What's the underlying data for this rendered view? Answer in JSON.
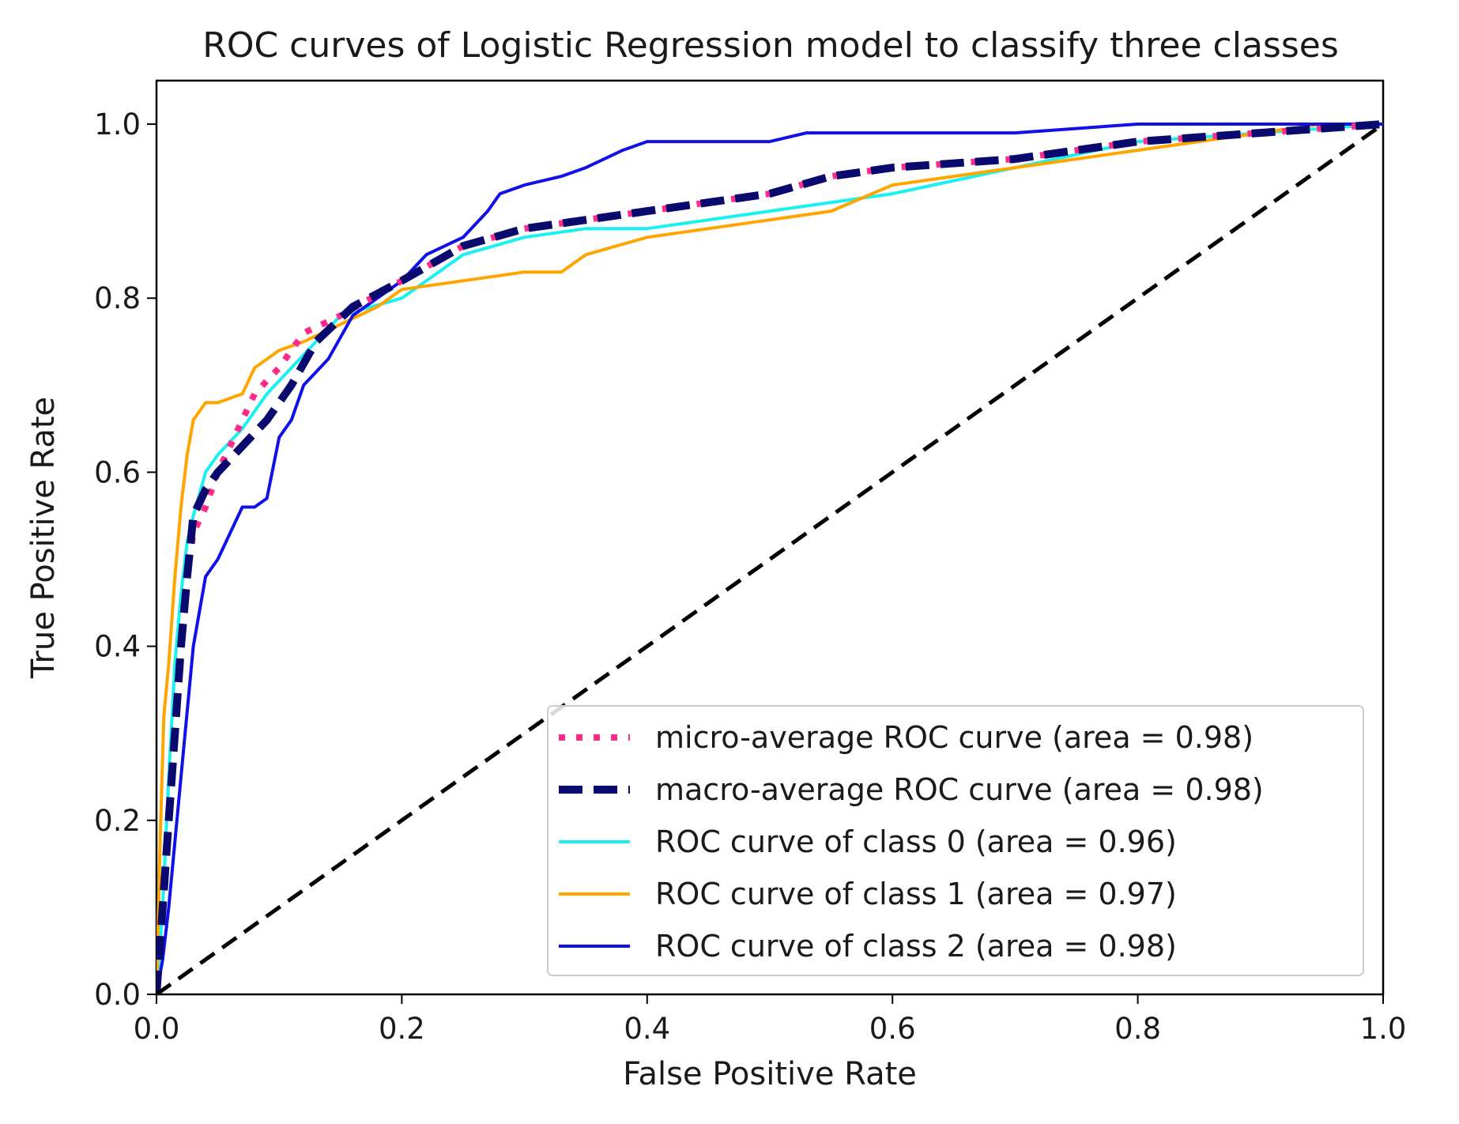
{
  "chart_data": {
    "type": "line",
    "title": "ROC curves of Logistic Regression model to classify three classes",
    "xlabel": "False Positive Rate",
    "ylabel": "True Positive Rate",
    "xlim": [
      0.0,
      1.0
    ],
    "ylim": [
      0.0,
      1.05
    ],
    "xticks": [
      0.0,
      0.2,
      0.4,
      0.6,
      0.8,
      1.0
    ],
    "yticks": [
      0.0,
      0.2,
      0.4,
      0.6,
      0.8,
      1.0
    ],
    "xtick_labels": [
      "0.0",
      "0.2",
      "0.4",
      "0.6",
      "0.8",
      "1.0"
    ],
    "ytick_labels": [
      "0.0",
      "0.2",
      "0.4",
      "0.6",
      "0.8",
      "1.0"
    ],
    "grid": false,
    "legend_position": "lower-right",
    "chance_line": {
      "name": "chance",
      "color": "#000000",
      "style": "dashed",
      "x": [
        0.0,
        1.0
      ],
      "y": [
        0.0,
        1.0
      ]
    },
    "series": [
      {
        "name": "micro-average ROC curve (area = 0.98)",
        "color": "#ff2a8a",
        "style": "dotted",
        "x": [
          0.0,
          0.005,
          0.01,
          0.015,
          0.02,
          0.025,
          0.03,
          0.04,
          0.05,
          0.06,
          0.07,
          0.08,
          0.1,
          0.12,
          0.15,
          0.2,
          0.25,
          0.3,
          0.35,
          0.4,
          0.45,
          0.5,
          0.55,
          0.6,
          0.7,
          0.8,
          0.9,
          1.0
        ],
        "y": [
          0.0,
          0.1,
          0.2,
          0.3,
          0.4,
          0.48,
          0.53,
          0.56,
          0.6,
          0.63,
          0.66,
          0.69,
          0.72,
          0.76,
          0.78,
          0.82,
          0.86,
          0.88,
          0.89,
          0.9,
          0.91,
          0.92,
          0.94,
          0.95,
          0.96,
          0.98,
          0.99,
          1.0
        ]
      },
      {
        "name": "macro-average ROC curve (area = 0.98)",
        "color": "#0a0a6e",
        "style": "dashed-thick",
        "x": [
          0.0,
          0.005,
          0.01,
          0.015,
          0.02,
          0.025,
          0.03,
          0.04,
          0.05,
          0.07,
          0.09,
          0.11,
          0.13,
          0.16,
          0.2,
          0.25,
          0.3,
          0.35,
          0.4,
          0.45,
          0.5,
          0.55,
          0.6,
          0.7,
          0.8,
          0.9,
          1.0
        ],
        "y": [
          0.0,
          0.1,
          0.2,
          0.3,
          0.4,
          0.48,
          0.55,
          0.58,
          0.6,
          0.63,
          0.66,
          0.7,
          0.75,
          0.79,
          0.82,
          0.86,
          0.88,
          0.89,
          0.9,
          0.91,
          0.92,
          0.94,
          0.95,
          0.96,
          0.98,
          0.99,
          1.0
        ]
      },
      {
        "name": "ROC curve of class 0 (area = 0.96)",
        "color": "#19f0f0",
        "style": "solid",
        "x": [
          0.0,
          0.005,
          0.01,
          0.015,
          0.02,
          0.025,
          0.03,
          0.04,
          0.05,
          0.07,
          0.09,
          0.11,
          0.13,
          0.15,
          0.2,
          0.25,
          0.3,
          0.35,
          0.4,
          0.45,
          0.5,
          0.55,
          0.6,
          0.7,
          0.8,
          0.9,
          1.0
        ],
        "y": [
          0.0,
          0.1,
          0.25,
          0.38,
          0.46,
          0.52,
          0.55,
          0.6,
          0.62,
          0.65,
          0.69,
          0.72,
          0.75,
          0.78,
          0.8,
          0.85,
          0.87,
          0.88,
          0.88,
          0.89,
          0.9,
          0.91,
          0.92,
          0.95,
          0.98,
          0.99,
          1.0
        ]
      },
      {
        "name": "ROC curve of class 1 (area = 0.97)",
        "color": "#ffa500",
        "style": "solid",
        "x": [
          0.0,
          0.003,
          0.006,
          0.01,
          0.015,
          0.02,
          0.025,
          0.03,
          0.04,
          0.05,
          0.07,
          0.08,
          0.1,
          0.12,
          0.15,
          0.18,
          0.2,
          0.25,
          0.3,
          0.33,
          0.35,
          0.4,
          0.45,
          0.5,
          0.55,
          0.6,
          0.65,
          0.7,
          0.75,
          0.8,
          0.85,
          0.9,
          0.95,
          1.0
        ],
        "y": [
          0.0,
          0.18,
          0.32,
          0.38,
          0.48,
          0.56,
          0.62,
          0.66,
          0.68,
          0.68,
          0.69,
          0.72,
          0.74,
          0.75,
          0.77,
          0.79,
          0.81,
          0.82,
          0.83,
          0.83,
          0.85,
          0.87,
          0.88,
          0.89,
          0.9,
          0.93,
          0.94,
          0.95,
          0.96,
          0.97,
          0.98,
          0.99,
          1.0,
          1.0
        ]
      },
      {
        "name": "ROC curve of class 2 (area = 0.98)",
        "color": "#1010e8",
        "style": "solid",
        "x": [
          0.0,
          0.005,
          0.01,
          0.02,
          0.03,
          0.04,
          0.05,
          0.06,
          0.07,
          0.08,
          0.09,
          0.1,
          0.11,
          0.12,
          0.14,
          0.16,
          0.18,
          0.2,
          0.22,
          0.25,
          0.27,
          0.28,
          0.3,
          0.33,
          0.35,
          0.38,
          0.4,
          0.45,
          0.5,
          0.53,
          0.6,
          0.7,
          0.8,
          0.9,
          1.0
        ],
        "y": [
          0.0,
          0.04,
          0.1,
          0.25,
          0.4,
          0.48,
          0.5,
          0.53,
          0.56,
          0.56,
          0.57,
          0.64,
          0.66,
          0.7,
          0.73,
          0.78,
          0.8,
          0.82,
          0.85,
          0.87,
          0.9,
          0.92,
          0.93,
          0.94,
          0.95,
          0.97,
          0.98,
          0.98,
          0.98,
          0.99,
          0.99,
          0.99,
          1.0,
          1.0,
          1.0
        ]
      }
    ]
  }
}
